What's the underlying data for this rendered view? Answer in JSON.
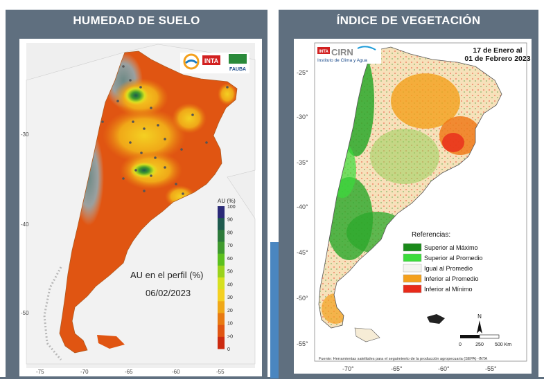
{
  "left_panel": {
    "title": "HUMEDAD DE SUELO",
    "logos": {
      "inta": "INTA",
      "fauba": "FAUBA"
    },
    "map_label": "AU en el perfil (%)",
    "map_date": "06/02/2023",
    "legend": {
      "title": "AU (%)",
      "ticks": [
        "100",
        "90",
        "80",
        "70",
        "60",
        "50",
        "40",
        "30",
        "20",
        "10",
        ">0",
        "0"
      ],
      "colors": [
        "#2a2a78",
        "#1e5a4e",
        "#2c7a3a",
        "#3f9a2e",
        "#5cc01e",
        "#9ad21c",
        "#d6e020",
        "#f4d022",
        "#f0a818",
        "#e87a12",
        "#e05512",
        "#cc2a10"
      ]
    },
    "lat_ticks": [
      "-30",
      "-40",
      "-50"
    ],
    "lon_ticks": [
      "-75",
      "-70",
      "-65",
      "-60",
      "-55"
    ]
  },
  "right_panel": {
    "title": "ÍNDICE DE VEGETACIÓN",
    "logo": {
      "inta": "INTA",
      "name": "CIRN",
      "subtitle": "Instituto de Clima y Agua"
    },
    "date_line1": "17 de Enero al",
    "date_line2": "01 de Febrero 2023",
    "legend": {
      "title": "Referencias:",
      "items": [
        {
          "label": "Superior al Máximo",
          "color": "#1a8a1a"
        },
        {
          "label": "Superior al Promedio",
          "color": "#3cdc3c"
        },
        {
          "label": "Igual al Promedio",
          "color": "#f4f4f0"
        },
        {
          "label": "Inferior al Promedio",
          "color": "#f4a01c"
        },
        {
          "label": "Inferior al Mínimo",
          "color": "#e82a1a"
        }
      ]
    },
    "lat_ticks": [
      "-25°",
      "-30°",
      "-35°",
      "-40°",
      "-45°",
      "-50°",
      "-55°"
    ],
    "lon_ticks": [
      "-70°",
      "-65°",
      "-60°",
      "-55°"
    ],
    "scale_labels": [
      "0",
      "250",
      "500 Km"
    ],
    "north_label": "N",
    "source": "Fuente: Herramientas satelitales para el seguimiento de la producción agropecuaria (SEPA) -INTA"
  }
}
